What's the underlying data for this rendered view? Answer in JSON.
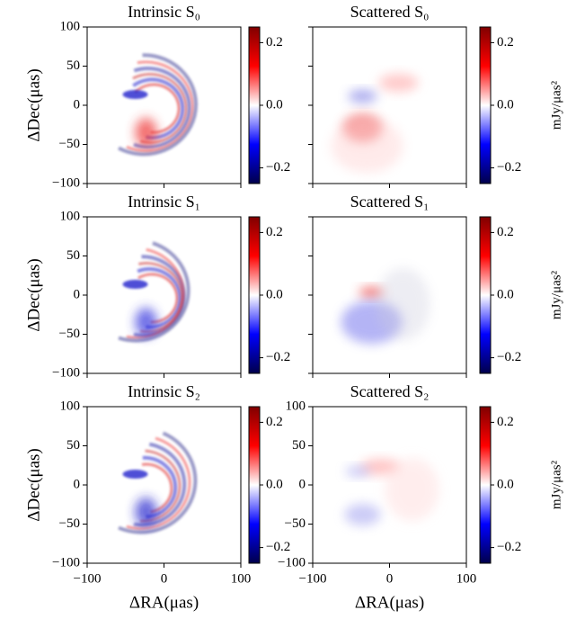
{
  "chart_data": [
    {
      "type": "heatmap",
      "title": "Intrinsic S₀",
      "ylabel": "ΔDec(μas)",
      "colormap": "seismic",
      "xlim": [
        -100,
        100
      ],
      "ylim": [
        -100,
        100
      ],
      "xticks": [
        {
          "value": -100,
          "label": "−100"
        },
        0,
        100
      ],
      "yticks": [
        {
          "value": -100,
          "label": "−100"
        },
        {
          "value": -50,
          "label": "−50"
        },
        0,
        50,
        100
      ],
      "show_xticklabels": false,
      "show_yticklabels": true,
      "clim": [
        -0.25,
        0.25
      ],
      "cticks": [
        {
          "value": -0.2,
          "label": "−0.2"
        },
        {
          "value": 0,
          "label": "0.0"
        },
        0.2
      ]
    },
    {
      "type": "heatmap",
      "title": "Scattered S₀",
      "colorbar_label": "mJy/μas²",
      "colormap": "seismic",
      "xlim": [
        -100,
        100
      ],
      "ylim": [
        -100,
        100
      ],
      "xticks": [
        {
          "value": -100,
          "label": "−100"
        },
        0,
        100
      ],
      "yticks": [
        {
          "value": -100,
          "label": "−100"
        },
        {
          "value": -50,
          "label": "−50"
        },
        0,
        50,
        100
      ],
      "show_xticklabels": false,
      "show_yticklabels": false,
      "clim": [
        -0.25,
        0.25
      ],
      "cticks": [
        {
          "value": -0.2,
          "label": "−0.2"
        },
        {
          "value": 0,
          "label": "0.0"
        },
        0.2
      ]
    },
    {
      "type": "heatmap",
      "title": "Intrinsic S₁",
      "ylabel": "ΔDec(μas)",
      "colormap": "seismic",
      "xlim": [
        -100,
        100
      ],
      "ylim": [
        -100,
        100
      ],
      "xticks": [
        {
          "value": -100,
          "label": "−100"
        },
        0,
        100
      ],
      "yticks": [
        {
          "value": -100,
          "label": "−100"
        },
        {
          "value": -50,
          "label": "−50"
        },
        0,
        50,
        100
      ],
      "show_xticklabels": false,
      "show_yticklabels": true,
      "clim": [
        -0.25,
        0.25
      ],
      "cticks": [
        {
          "value": -0.2,
          "label": "−0.2"
        },
        {
          "value": 0,
          "label": "0.0"
        },
        0.2
      ]
    },
    {
      "type": "heatmap",
      "title": "Scattered S₁",
      "colorbar_label": "mJy/μas²",
      "colormap": "seismic",
      "xlim": [
        -100,
        100
      ],
      "ylim": [
        -100,
        100
      ],
      "xticks": [
        {
          "value": -100,
          "label": "−100"
        },
        0,
        100
      ],
      "yticks": [
        {
          "value": -100,
          "label": "−100"
        },
        {
          "value": -50,
          "label": "−50"
        },
        0,
        50,
        100
      ],
      "show_xticklabels": false,
      "show_yticklabels": false,
      "clim": [
        -0.25,
        0.25
      ],
      "cticks": [
        {
          "value": -0.2,
          "label": "−0.2"
        },
        {
          "value": 0,
          "label": "0.0"
        },
        0.2
      ]
    },
    {
      "type": "heatmap",
      "title": "Intrinsic S₂",
      "ylabel": "ΔDec(μas)",
      "xlabel": "ΔRA(μas)",
      "colormap": "seismic",
      "xlim": [
        -100,
        100
      ],
      "ylim": [
        -100,
        100
      ],
      "xticks": [
        {
          "value": -100,
          "label": "−100"
        },
        0,
        100
      ],
      "yticks": [
        {
          "value": -100,
          "label": "−100"
        },
        {
          "value": -50,
          "label": "−50"
        },
        0,
        50,
        100
      ],
      "show_xticklabels": true,
      "show_yticklabels": true,
      "clim": [
        -0.25,
        0.25
      ],
      "cticks": [
        {
          "value": -0.2,
          "label": "−0.2"
        },
        {
          "value": 0,
          "label": "0.0"
        },
        0.2
      ]
    },
    {
      "type": "heatmap",
      "title": "Scattered S₂",
      "xlabel": "ΔRA(μas)",
      "colorbar_label": "mJy/μas²",
      "colormap": "seismic",
      "xlim": [
        -100,
        100
      ],
      "ylim": [
        -100,
        100
      ],
      "xticks": [
        {
          "value": -100,
          "label": "−100"
        },
        0,
        100
      ],
      "yticks": [
        {
          "value": -100,
          "label": "−100"
        },
        {
          "value": -50,
          "label": "−50"
        },
        0,
        50,
        100
      ],
      "show_xticklabels": true,
      "show_yticklabels": true,
      "clim": [
        -0.25,
        0.25
      ],
      "cticks": [
        {
          "value": -0.2,
          "label": "−0.2"
        },
        {
          "value": 0,
          "label": "0.0"
        },
        0.2
      ]
    }
  ]
}
